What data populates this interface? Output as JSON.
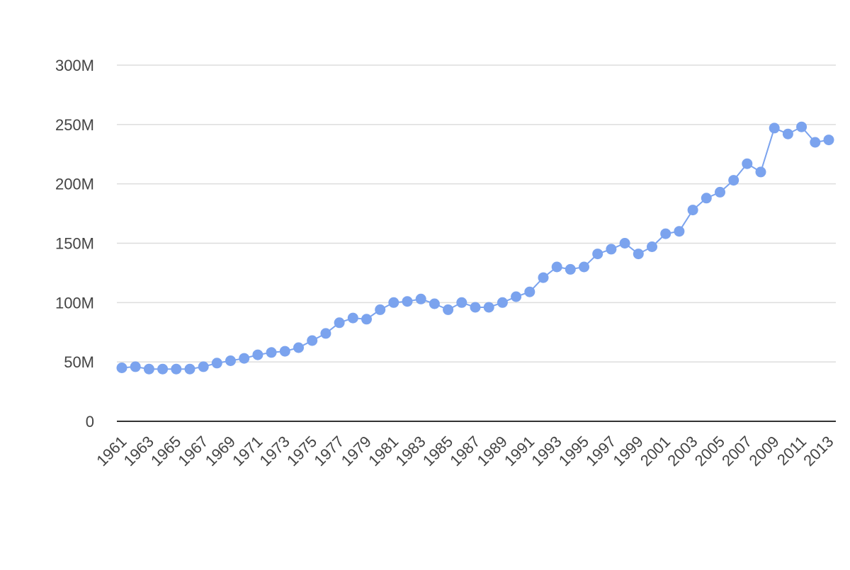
{
  "chart_data": {
    "type": "line",
    "title": "",
    "xlabel": "",
    "ylabel": "",
    "x": [
      1961,
      1962,
      1963,
      1964,
      1965,
      1966,
      1967,
      1968,
      1969,
      1970,
      1971,
      1972,
      1973,
      1974,
      1975,
      1976,
      1977,
      1978,
      1979,
      1980,
      1981,
      1982,
      1983,
      1984,
      1985,
      1986,
      1987,
      1988,
      1989,
      1990,
      1991,
      1992,
      1993,
      1994,
      1995,
      1996,
      1997,
      1998,
      1999,
      2000,
      2001,
      2002,
      2003,
      2004,
      2005,
      2006,
      2007,
      2008,
      2009,
      2010,
      2011,
      2012,
      2013
    ],
    "series": [
      {
        "values": [
          45,
          46,
          44,
          44,
          44,
          44,
          46,
          49,
          51,
          53,
          56,
          58,
          59,
          62,
          68,
          74,
          83,
          87,
          86,
          94,
          100,
          101,
          103,
          99,
          94,
          100,
          96,
          96,
          100,
          105,
          109,
          121,
          130,
          128,
          130,
          141,
          145,
          150,
          141,
          147,
          158,
          160,
          178,
          188,
          193,
          203,
          217,
          210,
          247,
          242,
          248,
          235,
          237
        ],
        "color": "#7ba3ee"
      }
    ],
    "ylim": [
      0,
      300
    ],
    "y_ticks": [
      0,
      50,
      100,
      150,
      200,
      250,
      300
    ],
    "y_tick_labels": [
      "0",
      "50M",
      "100M",
      "150M",
      "200M",
      "250M",
      "300M"
    ],
    "x_tick_labels": [
      "1961",
      "1963",
      "1965",
      "1967",
      "1969",
      "1971",
      "1973",
      "1975",
      "1977",
      "1979",
      "1981",
      "1983",
      "1985",
      "1987",
      "1989",
      "1991",
      "1993",
      "1995",
      "1997",
      "1999",
      "2001",
      "2003",
      "2005",
      "2007",
      "2009",
      "2011",
      "2013"
    ],
    "grid": true,
    "legend": "none"
  }
}
